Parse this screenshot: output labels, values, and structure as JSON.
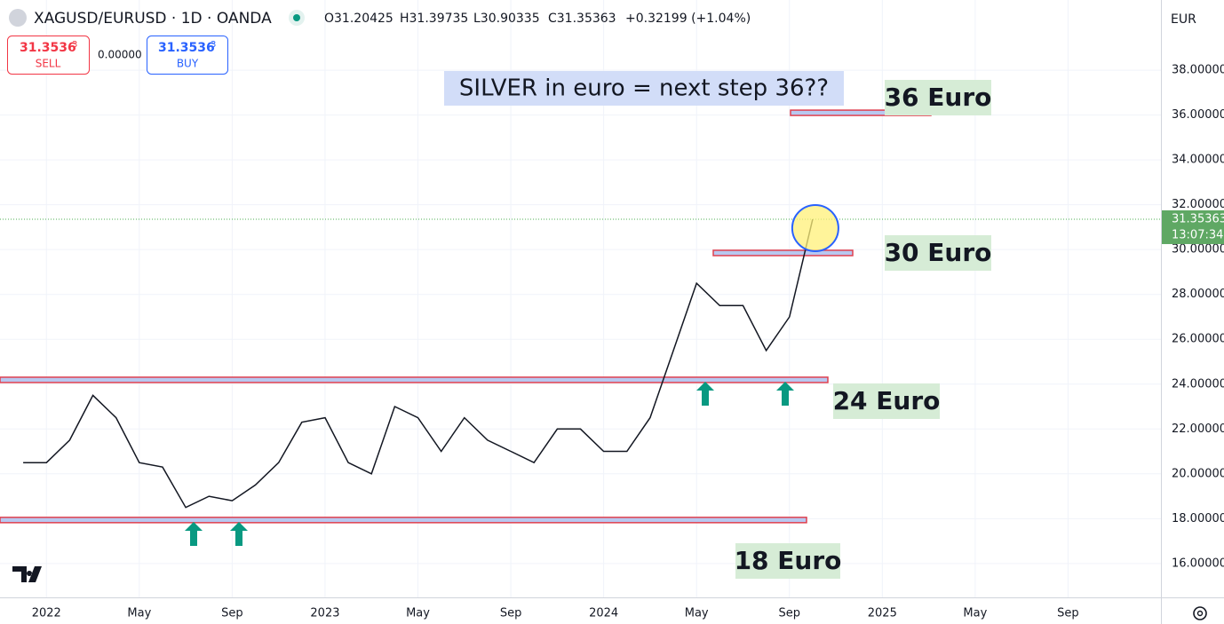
{
  "chart_data": {
    "type": "line",
    "title": "XAGUSD/EURUSD · 1D · OANDA",
    "ohlc": [
      "O31.20425",
      "H31.39735",
      "L30.90335",
      "C31.35363",
      "+0.32199 (+1.04%)"
    ],
    "sell": {
      "price": "31.3536",
      "pip": "3",
      "label": "SELL"
    },
    "buy": {
      "price": "31.3536",
      "pip": "3",
      "label": "BUY"
    },
    "spread": "0.00000",
    "currency": "EUR",
    "annotation": "SILVER in euro = next step 36??",
    "x": [
      "2021-12",
      "2022-01",
      "2022-02",
      "2022-03",
      "2022-04",
      "2022-05",
      "2022-06",
      "2022-07",
      "2022-08",
      "2022-09",
      "2022-10",
      "2022-11",
      "2022-12",
      "2023-01",
      "2023-02",
      "2023-03",
      "2023-04",
      "2023-05",
      "2023-06",
      "2023-07",
      "2023-08",
      "2023-09",
      "2023-10",
      "2023-11",
      "2023-12",
      "2024-01",
      "2024-02",
      "2024-03",
      "2024-04",
      "2024-05",
      "2024-06",
      "2024-07",
      "2024-08",
      "2024-09",
      "2024-10"
    ],
    "series": [
      {
        "color": "#131722",
        "values": [
          20.5,
          20.5,
          21.5,
          23.5,
          22.5,
          20.5,
          20.3,
          18.5,
          19.0,
          18.8,
          19.5,
          20.5,
          22.3,
          22.5,
          20.5,
          20.0,
          23.0,
          22.5,
          21.0,
          22.5,
          21.5,
          21.0,
          20.5,
          22.0,
          22.0,
          21.0,
          21.0,
          22.5,
          25.5,
          28.5,
          27.5,
          27.5,
          25.5,
          27.0,
          31.35363
        ]
      }
    ],
    "xlim": [
      "2021-11",
      "2026-01"
    ],
    "xticks": [
      {
        "value": "2022-01",
        "label": "2022"
      },
      {
        "value": "2022-05",
        "label": "May"
      },
      {
        "value": "2022-09",
        "label": "Sep"
      },
      {
        "value": "2023-01",
        "label": "2023"
      },
      {
        "value": "2023-05",
        "label": "May"
      },
      {
        "value": "2023-09",
        "label": "Sep"
      },
      {
        "value": "2024-01",
        "label": "2024"
      },
      {
        "value": "2024-05",
        "label": "May"
      },
      {
        "value": "2024-09",
        "label": "Sep"
      },
      {
        "value": "2025-01",
        "label": "2025"
      },
      {
        "value": "2025-05",
        "label": "May"
      },
      {
        "value": "2025-09",
        "label": "Sep"
      }
    ],
    "ylim": [
      14.49,
      41.13
    ],
    "yticks": [
      {
        "value": 16,
        "label": "16.00000"
      },
      {
        "value": 18,
        "label": "18.00000"
      },
      {
        "value": 20,
        "label": "20.00000"
      },
      {
        "value": 22,
        "label": "22.00000"
      },
      {
        "value": 24,
        "label": "24.00000"
      },
      {
        "value": 26,
        "label": "26.00000"
      },
      {
        "value": 28,
        "label": "28.00000"
      },
      {
        "value": 30,
        "label": "30.00000"
      },
      {
        "value": 32,
        "label": "32.00000"
      },
      {
        "value": 34,
        "label": "34.00000"
      },
      {
        "value": 36,
        "label": "36.00000"
      },
      {
        "value": 38,
        "label": "38.00000"
      }
    ],
    "grid": true,
    "last_price": {
      "value": 31.35363,
      "label": "31.35363"
    },
    "countdown": "13:07:34",
    "levels": [
      {
        "value": 36.1,
        "label": "36 Euro"
      },
      {
        "value": 29.85,
        "label": "30 Euro"
      },
      {
        "value": 24.19,
        "label": "24 Euro"
      },
      {
        "value": 17.94,
        "label": "18 Euro"
      }
    ]
  }
}
